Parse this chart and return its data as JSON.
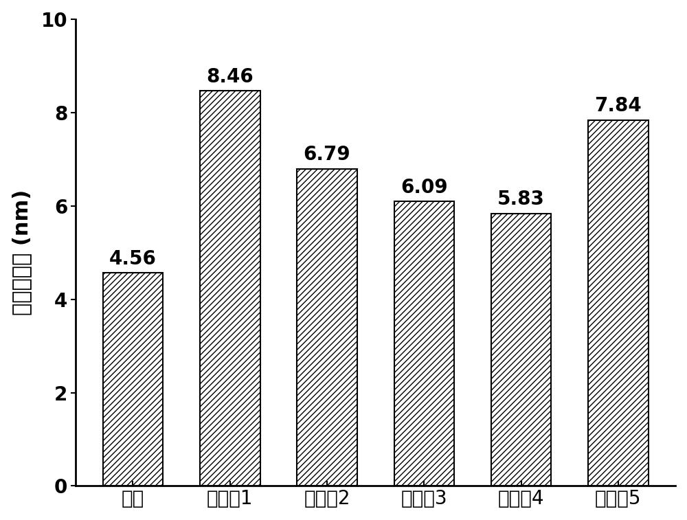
{
  "categories": [
    "空白",
    "实施例1",
    "实施例2",
    "实施例3",
    "实施例4",
    "实施例5"
  ],
  "values": [
    4.56,
    8.46,
    6.79,
    6.09,
    5.83,
    7.84
  ],
  "ylabel": "吸附层厚度 (nm)",
  "ylim": [
    0,
    10
  ],
  "yticks": [
    0,
    2,
    4,
    6,
    8,
    10
  ],
  "bar_color": "#ffffff",
  "bar_edgecolor": "#000000",
  "hatch_pattern": "////",
  "bar_linewidth": 1.5,
  "label_fontsize": 22,
  "tick_fontsize": 20,
  "value_fontsize": 20,
  "background_color": "#ffffff",
  "bar_width": 0.62,
  "spine_linewidth": 2.0
}
